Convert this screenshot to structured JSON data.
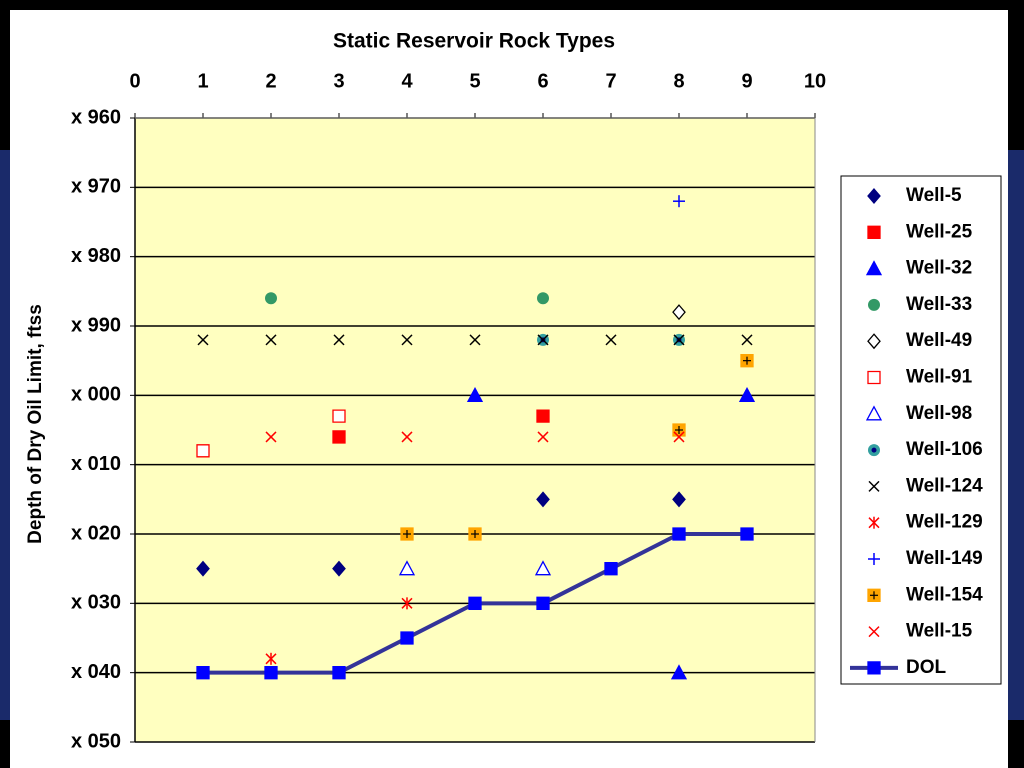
{
  "chart_data": {
    "type": "scatter",
    "title": "Static Reservoir Rock Types",
    "ylabel": "Depth of Dry Oil Limit, ftss",
    "xlim": [
      0,
      10
    ],
    "xticks": [
      0,
      1,
      2,
      3,
      4,
      5,
      6,
      7,
      8,
      9,
      10
    ],
    "ylim": [
      960,
      1050
    ],
    "y_reversed": true,
    "grid": true,
    "yticks": [
      {
        "value": 960,
        "label": "x 960"
      },
      {
        "value": 970,
        "label": "x 970"
      },
      {
        "value": 980,
        "label": "x 980"
      },
      {
        "value": 990,
        "label": "x 990"
      },
      {
        "value": 1000,
        "label": "x 000"
      },
      {
        "value": 1010,
        "label": "x 010"
      },
      {
        "value": 1020,
        "label": "x 020"
      },
      {
        "value": 1030,
        "label": "x 030"
      },
      {
        "value": 1040,
        "label": "x 040"
      },
      {
        "value": 1050,
        "label": "x 050"
      }
    ],
    "legend": "right",
    "series": [
      {
        "name": "Well-5",
        "color": "#000080",
        "marker": "diamond",
        "x": [
          1,
          3,
          6,
          8
        ],
        "y": [
          1025,
          1025,
          1015,
          1015
        ]
      },
      {
        "name": "Well-25",
        "color": "#ff0000",
        "marker": "square",
        "x": [
          3,
          6
        ],
        "y": [
          1006,
          1003
        ]
      },
      {
        "name": "Well-32",
        "color": "#0000ff",
        "marker": "triangle",
        "x": [
          5,
          9,
          8
        ],
        "y": [
          1000,
          1000,
          1040
        ]
      },
      {
        "name": "Well-33",
        "color": "#339966",
        "marker": "circle",
        "x": [
          2,
          6
        ],
        "y": [
          986,
          986
        ]
      },
      {
        "name": "Well-49",
        "color": "#000000",
        "marker": "open-diamond",
        "x": [
          8
        ],
        "y": [
          988
        ]
      },
      {
        "name": "Well-91",
        "color": "#ff0000",
        "marker": "open-square",
        "x": [
          1,
          3
        ],
        "y": [
          1008,
          1003
        ]
      },
      {
        "name": "Well-98",
        "color": "#0000ff",
        "marker": "open-triangle",
        "x": [
          4,
          6
        ],
        "y": [
          1025,
          1025
        ]
      },
      {
        "name": "Well-106",
        "color": "#33a0a0",
        "marker": "circle-dot",
        "x": [
          6,
          8
        ],
        "y": [
          992,
          992
        ]
      },
      {
        "name": "Well-124",
        "color": "#000000",
        "marker": "x",
        "x": [
          1,
          2,
          3,
          4,
          5,
          6,
          7,
          8,
          9
        ],
        "y": [
          992,
          992,
          992,
          992,
          992,
          992,
          992,
          992,
          992
        ]
      },
      {
        "name": "Well-129",
        "color": "#ff0000",
        "marker": "asterisk",
        "x": [
          2,
          4
        ],
        "y": [
          1038,
          1030
        ]
      },
      {
        "name": "Well-149",
        "color": "#0000ff",
        "marker": "plus",
        "x": [
          8
        ],
        "y": [
          972
        ]
      },
      {
        "name": "Well-154",
        "color": "#ffa500",
        "marker": "square-plus",
        "x": [
          4,
          5,
          8,
          9
        ],
        "y": [
          1020,
          1020,
          1005,
          995
        ]
      },
      {
        "name": "Well-15",
        "color": "#ff0000",
        "marker": "x",
        "x": [
          2,
          4,
          6,
          8
        ],
        "y": [
          1006,
          1006,
          1006,
          1006
        ]
      },
      {
        "name": "DOL",
        "color": "#333399",
        "marker": "square",
        "marker_color": "#0000ff",
        "line": true,
        "x": [
          1,
          2,
          3,
          4,
          5,
          6,
          7,
          8,
          9
        ],
        "y": [
          1040,
          1040,
          1040,
          1035,
          1030,
          1030,
          1025,
          1020,
          1020
        ]
      }
    ]
  }
}
